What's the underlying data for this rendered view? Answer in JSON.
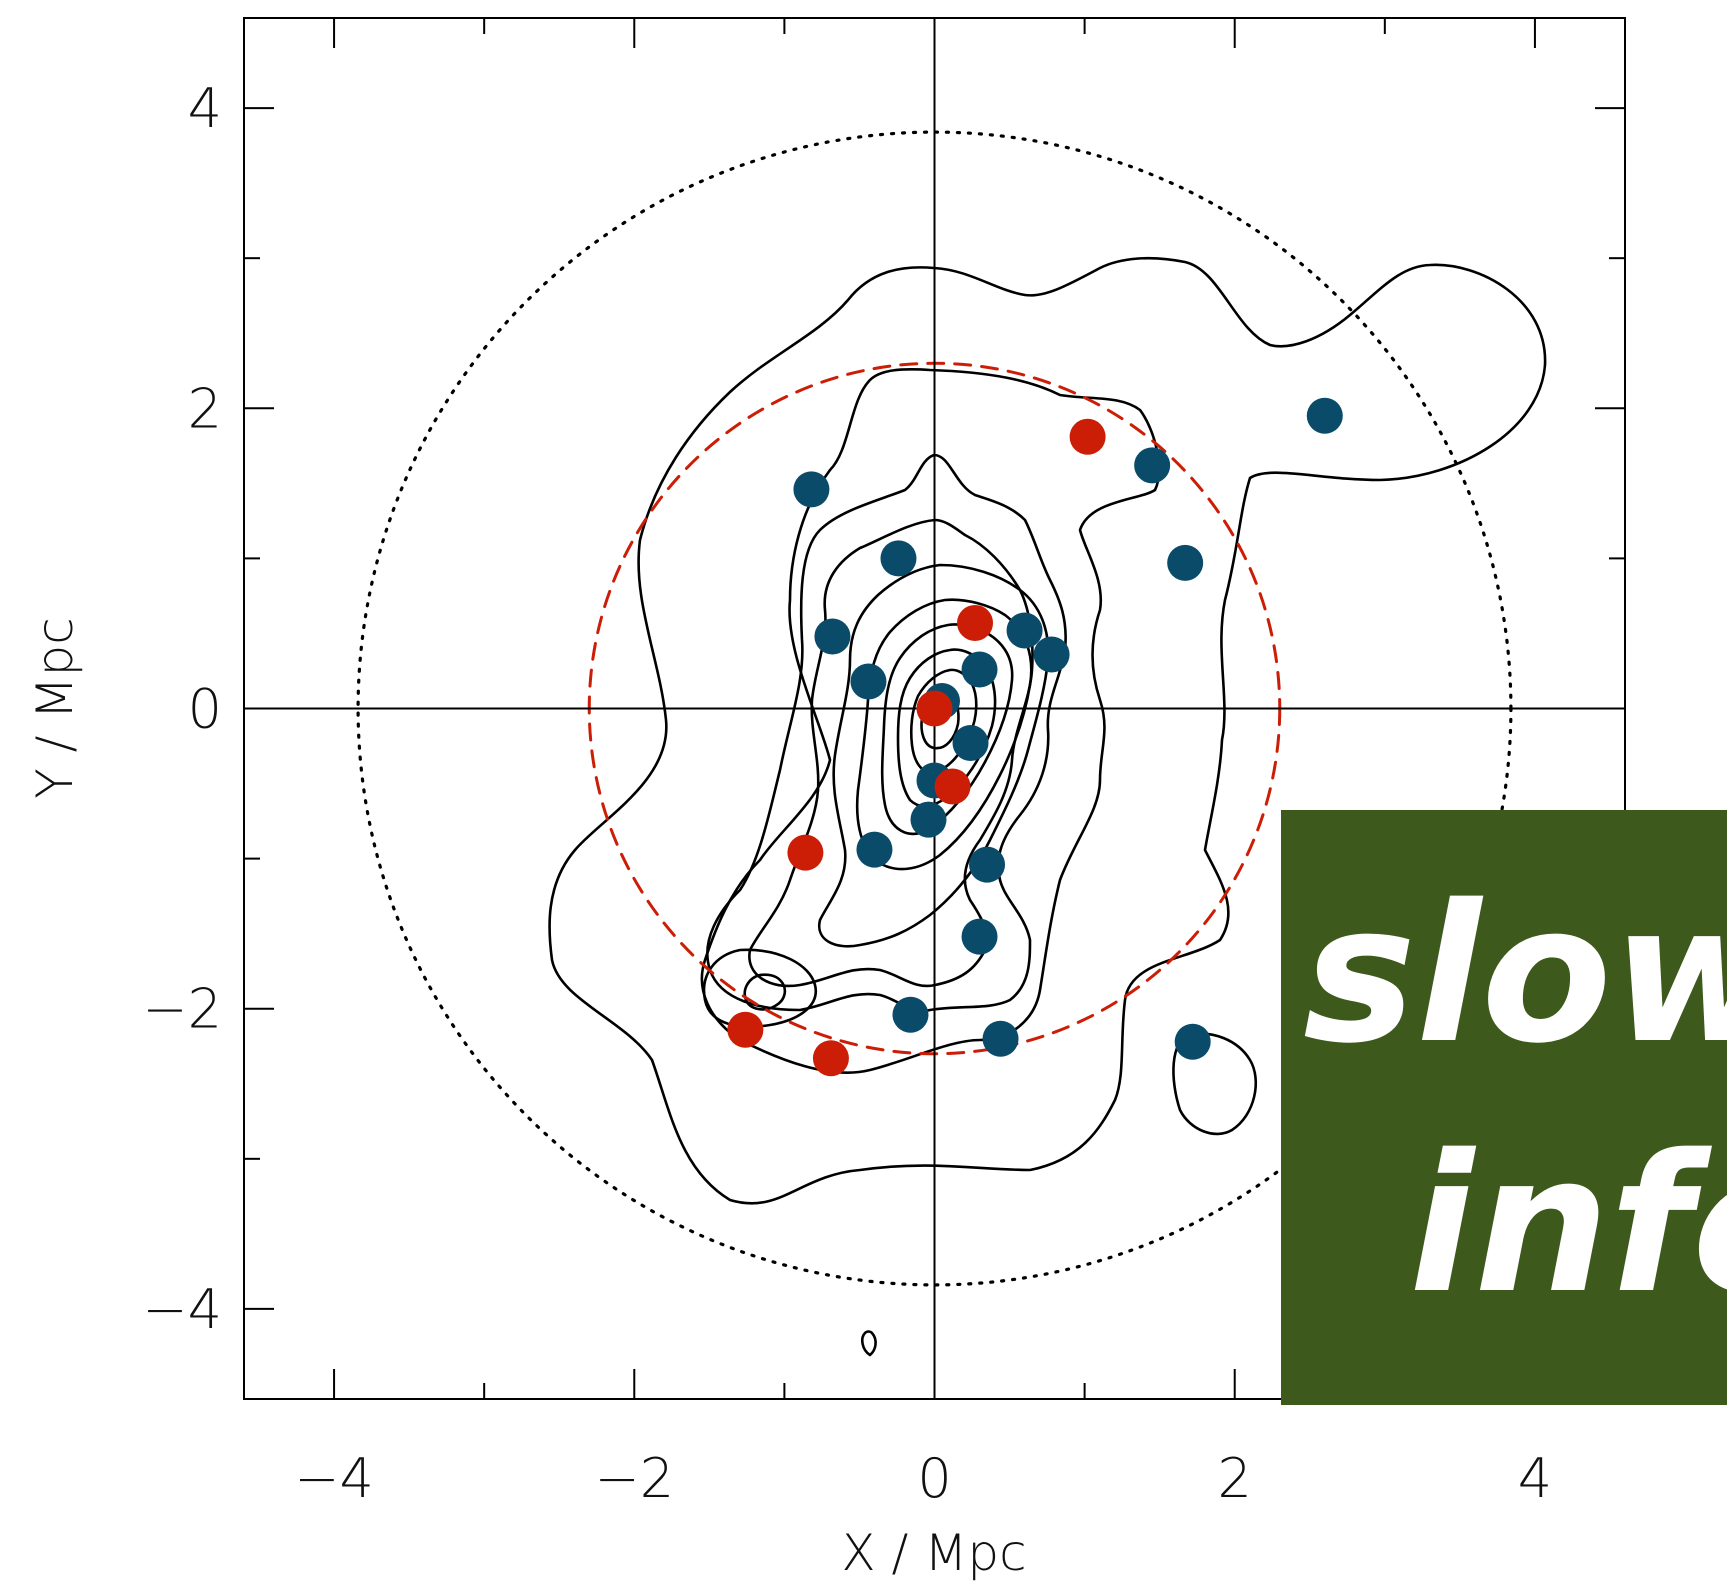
{
  "chart_data": {
    "type": "scatter",
    "xlabel": "X / Mpc",
    "ylabel": "Y / Mpc",
    "xlim": [
      -4.6,
      4.6
    ],
    "ylim": [
      -4.6,
      4.6
    ],
    "x_ticks": [
      -4,
      -2,
      0,
      2,
      4
    ],
    "y_ticks": [
      -4,
      -2,
      0,
      2,
      4
    ],
    "x_tick_labels": [
      "−4",
      "−2",
      "0",
      "2",
      "4"
    ],
    "y_tick_labels": [
      "−4",
      "−2",
      "0",
      "2",
      "4"
    ],
    "series": [
      {
        "color": "#0b4b6a",
        "points": [
          [
            -0.82,
            1.46
          ],
          [
            -0.24,
            1.0
          ],
          [
            -0.68,
            0.48
          ],
          [
            -0.44,
            0.18
          ],
          [
            1.45,
            1.62
          ],
          [
            2.6,
            1.95
          ],
          [
            1.67,
            0.97
          ],
          [
            0.6,
            0.52
          ],
          [
            0.78,
            0.36
          ],
          [
            0.3,
            0.26
          ],
          [
            0.05,
            0.05
          ],
          [
            0.24,
            -0.23
          ],
          [
            0.0,
            -0.48
          ],
          [
            -0.04,
            -0.74
          ],
          [
            -0.4,
            -0.94
          ],
          [
            0.35,
            -1.04
          ],
          [
            0.3,
            -1.52
          ],
          [
            -0.16,
            -2.04
          ],
          [
            0.44,
            -2.2
          ],
          [
            1.72,
            -2.22
          ]
        ]
      },
      {
        "color": "#cc1e06",
        "points": [
          [
            1.02,
            1.81
          ],
          [
            0.27,
            0.57
          ],
          [
            0.0,
            0.0
          ],
          [
            0.12,
            -0.52
          ],
          [
            -0.86,
            -0.96
          ],
          [
            -1.26,
            -2.14
          ],
          [
            -0.69,
            -2.33
          ]
        ]
      }
    ],
    "circles": [
      {
        "radius": 2.3,
        "center": [
          0,
          0
        ],
        "style": "dashed",
        "color": "#cc1e06"
      },
      {
        "radius": 3.84,
        "center": [
          0,
          0
        ],
        "style": "dotted",
        "color": "#000000"
      }
    ],
    "grid": false
  },
  "banner": {
    "background": "#3d5a1c",
    "line1": "slow",
    "line2": "info"
  }
}
